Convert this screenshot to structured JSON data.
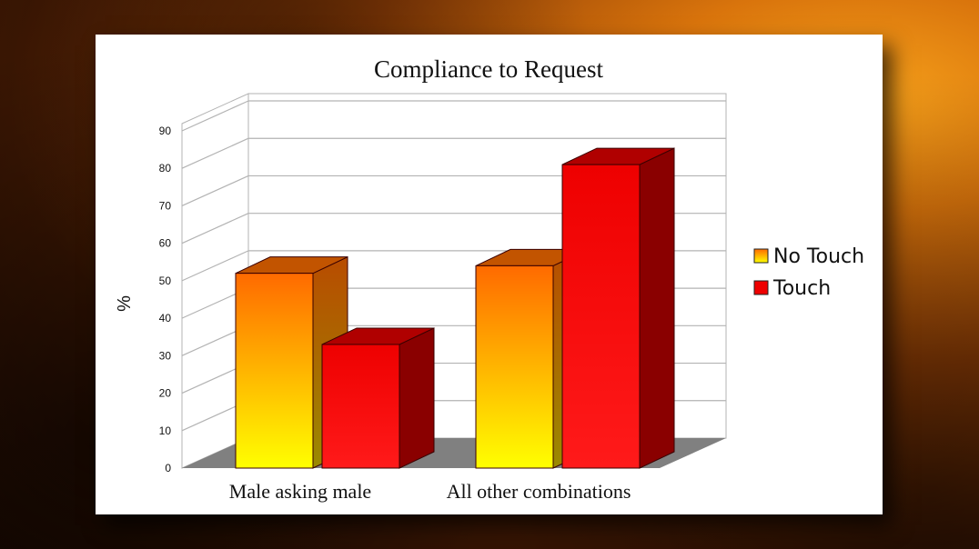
{
  "chart_data": {
    "type": "bar",
    "title": "Compliance to Request",
    "xlabel": "",
    "ylabel": "%",
    "categories": [
      "Male asking male",
      "All other combinations"
    ],
    "series": [
      {
        "name": "No Touch",
        "values": [
          52,
          54
        ]
      },
      {
        "name": "Touch",
        "values": [
          33,
          81
        ]
      }
    ],
    "ylim": [
      0,
      90
    ],
    "yticks": [
      0,
      10,
      20,
      30,
      40,
      50,
      60,
      70,
      80,
      90
    ],
    "grid": true,
    "legend_position": "right",
    "three_d": true,
    "colors": {
      "no_touch_top": "#ff6a00",
      "no_touch_bottom": "#ffff00",
      "touch": "#ee0000",
      "floor": "#808080"
    }
  }
}
